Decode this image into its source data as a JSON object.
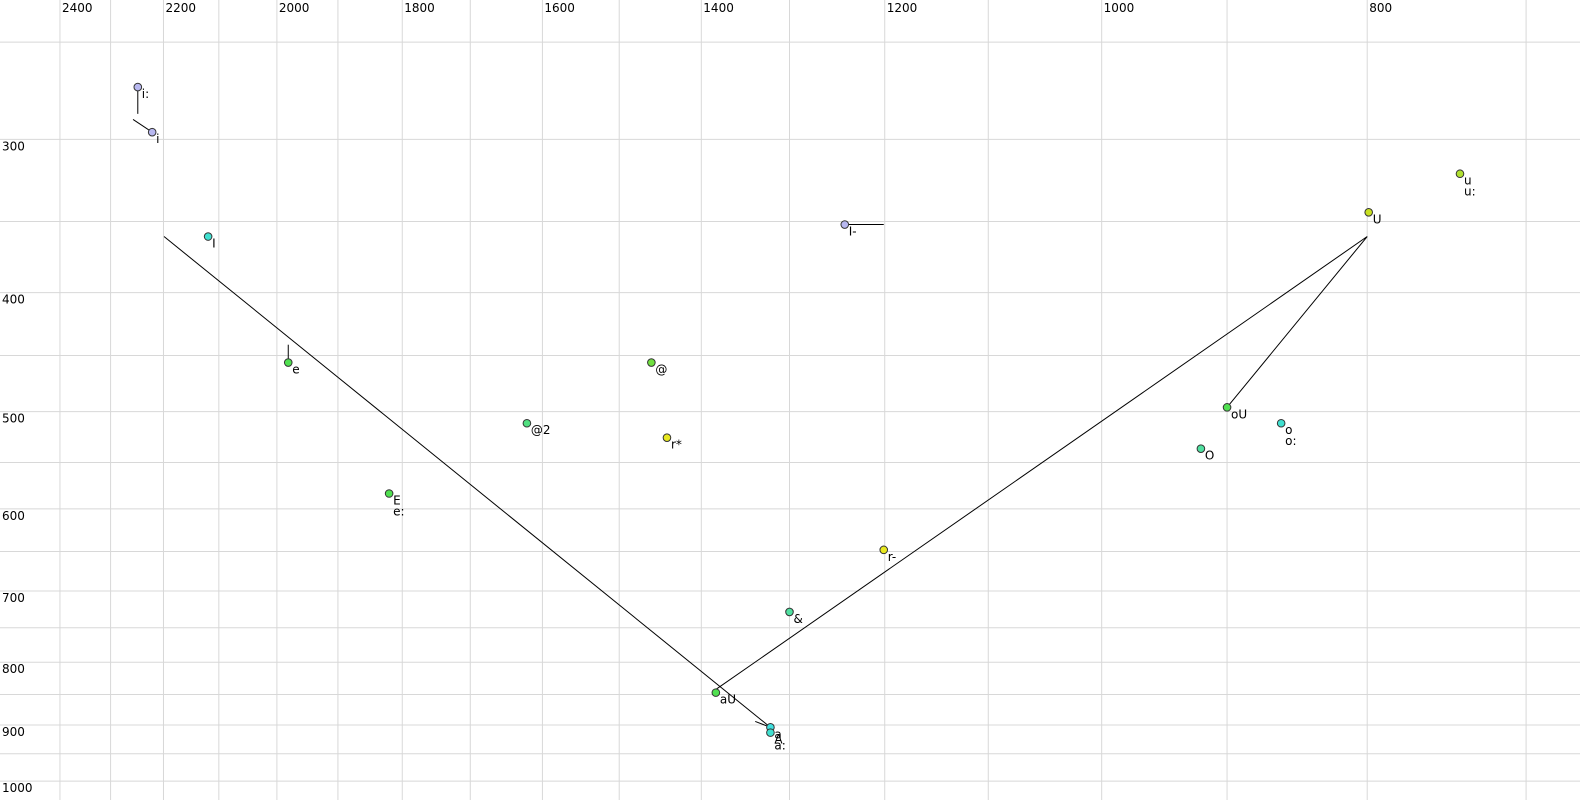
{
  "chart_data": {
    "type": "scatter",
    "xscale": "log",
    "yscale": "log",
    "grid": true,
    "xlim": [
      2524,
      669
    ],
    "ylim": [
      231,
      1036
    ],
    "xticks": [
      2400,
      2200,
      2000,
      1800,
      1600,
      1400,
      1200,
      1000,
      800
    ],
    "xminor": [
      2300,
      2100,
      1900,
      1700,
      1500,
      1300,
      1100,
      900,
      700
    ],
    "yticks": [
      300,
      400,
      500,
      600,
      700,
      800,
      900,
      1000
    ],
    "yminor": [
      250,
      350,
      450,
      550,
      650,
      750,
      850,
      950
    ],
    "points": [
      {
        "labels": [
          "i:"
        ],
        "x": 2248,
        "y": 272,
        "color": "#b8b8f0"
      },
      {
        "labels": [
          "i"
        ],
        "x": 2221,
        "y": 296,
        "color": "#b8b8f0"
      },
      {
        "labels": [
          "I"
        ],
        "x": 2119,
        "y": 360,
        "color": "#40e0d0"
      },
      {
        "labels": [
          "e"
        ],
        "x": 1981,
        "y": 456,
        "color": "#50e050"
      },
      {
        "labels": [
          "E",
          "e:"
        ],
        "x": 1820,
        "y": 583,
        "color": "#50e050"
      },
      {
        "labels": [
          "@2"
        ],
        "x": 1621,
        "y": 511,
        "color": "#50e080"
      },
      {
        "labels": [
          "@"
        ],
        "x": 1460,
        "y": 456,
        "color": "#70e040"
      },
      {
        "labels": [
          "r*"
        ],
        "x": 1441,
        "y": 525,
        "color": "#e8e820"
      },
      {
        "labels": [
          "I-"
        ],
        "x": 1241,
        "y": 352,
        "color": "#b8b8f0"
      },
      {
        "labels": [
          "r-"
        ],
        "x": 1201,
        "y": 648,
        "color": "#e8e820"
      },
      {
        "labels": [
          "&"
        ],
        "x": 1300,
        "y": 728,
        "color": "#50e0a0"
      },
      {
        "labels": [
          "aU"
        ],
        "x": 1383,
        "y": 847,
        "color": "#50e050"
      },
      {
        "labels": [
          "a",
          "a:"
        ],
        "x": 1321,
        "y": 904,
        "color": "#40e0e0"
      },
      {
        "labels": [
          "A"
        ],
        "x": 1321,
        "y": 913,
        "color": "#40e0d0"
      },
      {
        "labels": [
          "oU"
        ],
        "x": 900,
        "y": 496,
        "color": "#50e050"
      },
      {
        "labels": [
          "O"
        ],
        "x": 920,
        "y": 536,
        "color": "#50e0a0"
      },
      {
        "labels": [
          "o",
          "o:"
        ],
        "x": 860,
        "y": 511,
        "color": "#40e0d0"
      },
      {
        "labels": [
          "U"
        ],
        "x": 799,
        "y": 344,
        "color": "#c8e020"
      },
      {
        "labels": [
          "u",
          "u:"
        ],
        "x": 740,
        "y": 320,
        "color": "#b0e030"
      }
    ],
    "trajectories": [
      {
        "x": [
          2199,
          1321
        ],
        "y": [
          360,
          904
        ]
      },
      {
        "x": [
          1383,
          800,
          900
        ],
        "y": [
          842,
          360,
          496
        ]
      },
      {
        "x": [
          2248,
          2248
        ],
        "y": [
          272,
          286
        ]
      },
      {
        "x": [
          2257,
          2221
        ],
        "y": [
          289,
          296
        ]
      },
      {
        "x": [
          1981,
          1981
        ],
        "y": [
          441,
          456
        ]
      },
      {
        "x": [
          1241,
          1201
        ],
        "y": [
          352,
          352
        ]
      },
      {
        "x": [
          1338,
          1321
        ],
        "y": [
          894,
          904
        ]
      }
    ]
  }
}
